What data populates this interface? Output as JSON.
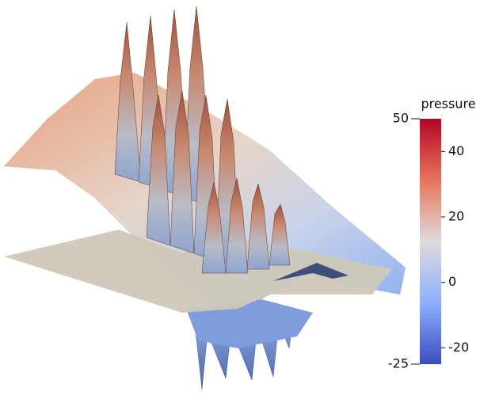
{
  "legend": {
    "title": "pressure",
    "range": [
      -25,
      50
    ],
    "ticks": [
      -20,
      0,
      20,
      40
    ]
  }
}
